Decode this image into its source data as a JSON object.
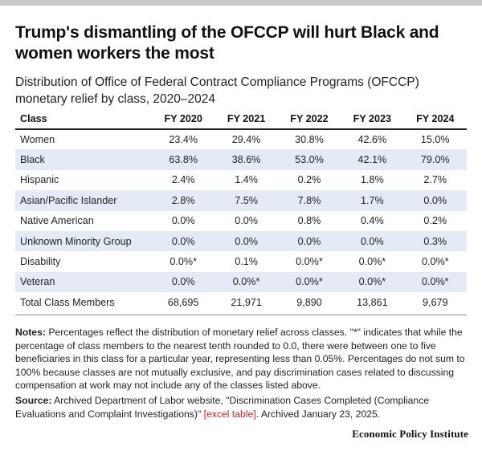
{
  "title": "Trump's dismantling of the OFCCP will hurt Black and women workers the most",
  "subtitle": "Distribution of Office of Federal Contract Compliance Programs (OFCCP) monetary relief by class, 2020–2024",
  "chart_data": {
    "type": "table",
    "columns": [
      "Class",
      "FY 2020",
      "FY 2021",
      "FY 2022",
      "FY 2023",
      "FY 2024"
    ],
    "rows": [
      {
        "label": "Women",
        "values": [
          "23.4%",
          "29.4%",
          "30.8%",
          "42.6%",
          "15.0%"
        ]
      },
      {
        "label": "Black",
        "values": [
          "63.8%",
          "38.6%",
          "53.0%",
          "42.1%",
          "79.0%"
        ]
      },
      {
        "label": "Hispanic",
        "values": [
          "2.4%",
          "1.4%",
          "0.2%",
          "1.8%",
          "2.7%"
        ]
      },
      {
        "label": "Asian/Pacific Islander",
        "values": [
          "2.8%",
          "7.5%",
          "7.8%",
          "1.7%",
          "0.0%"
        ]
      },
      {
        "label": "Native American",
        "values": [
          "0.0%",
          "0.0%",
          "0.8%",
          "0.4%",
          "0.2%"
        ]
      },
      {
        "label": "Unknown Minority Group",
        "values": [
          "0.0%",
          "0.0%",
          "0.0%",
          "0.0%",
          "0.3%"
        ]
      },
      {
        "label": "Disability",
        "values": [
          "0.0%*",
          "0.1%",
          "0.0%*",
          "0.0%*",
          "0.0%*"
        ]
      },
      {
        "label": "Veteran",
        "values": [
          "0.0%",
          "0.0%*",
          "0.0%*",
          "0.0%*",
          "0.0%*"
        ]
      },
      {
        "label": "Total Class Members",
        "values": [
          "68,695",
          "21,971",
          "9,890",
          "13,861",
          "9,679"
        ]
      }
    ],
    "stripe_color": "#e4ebf6"
  },
  "notes": {
    "label": "Notes:",
    "text": "Percentages reflect the distribution of monetary relief across classes. \"*\" indicates that while the percentage of class members to the nearest tenth rounded to 0.0, there were between one to five beneficiaries in this class for a particular year, representing less than 0.05%. Percentages do not sum to 100% because classes are not mutually exclusive, and pay discrimination cases related to discussing compensation at work may not include any of the classes listed above."
  },
  "source": {
    "label": "Source:",
    "text_before": "Archived Department of Labor website, \"Discrimination Cases Completed (Compliance Evaluations and Complaint Investigations)\" ",
    "link_text": "[excel table]",
    "text_after": ". Archived January 23, 2025."
  },
  "brand": "Economic Policy Institute",
  "colors": {
    "link": "#c0272d",
    "top_bar": "#c9c9c9"
  }
}
